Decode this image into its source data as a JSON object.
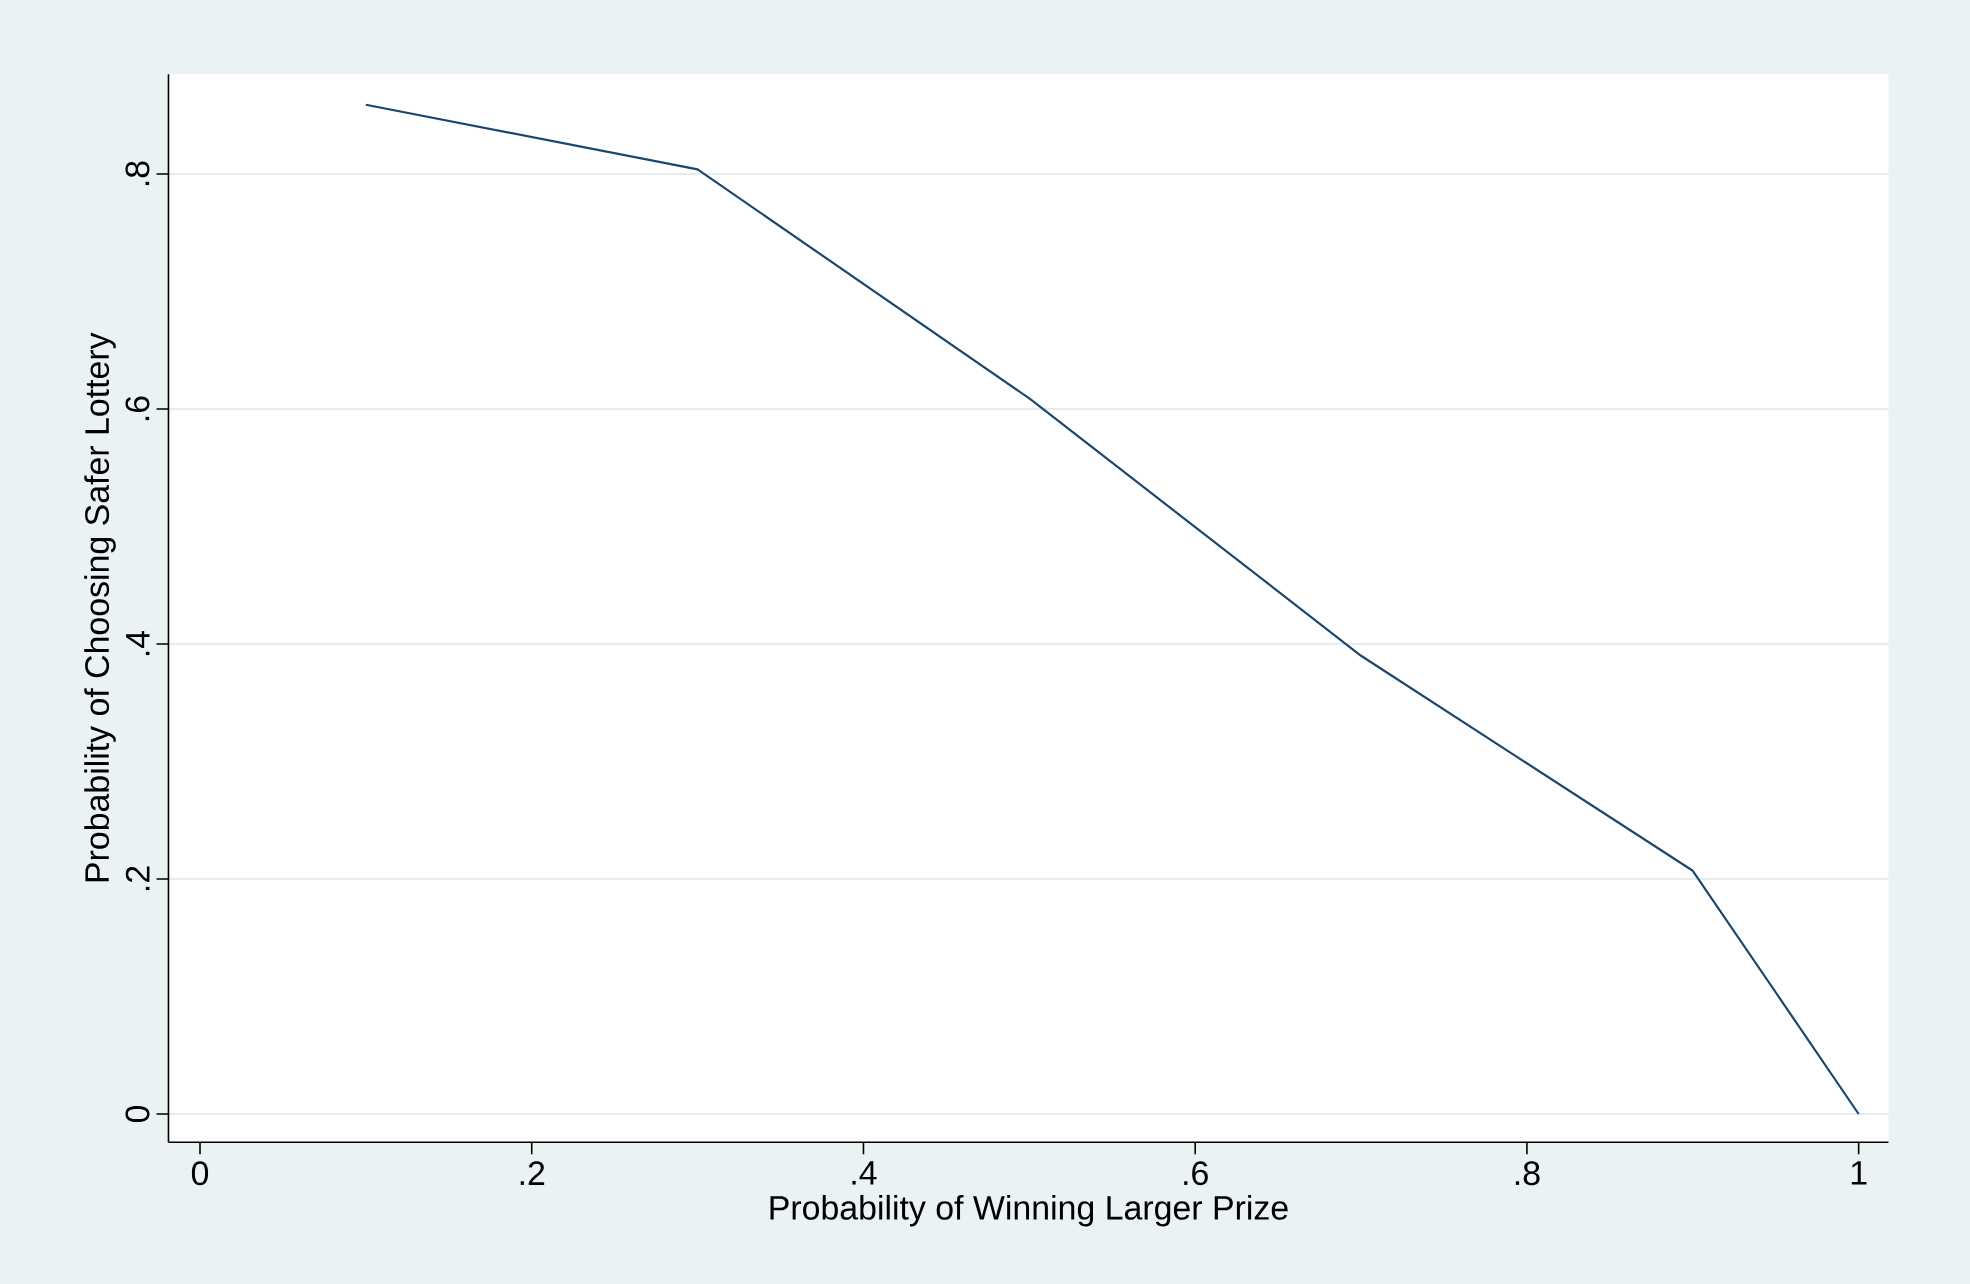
{
  "chart_data": {
    "type": "line",
    "xlabel": "Probability of Winning Larger Prize",
    "ylabel": "Probability of Choosing Safer Lottery",
    "x": [
      0.1,
      0.3,
      0.5,
      0.7,
      0.9,
      1.0
    ],
    "series": [
      {
        "color": "#1a476f",
        "values": [
          0.859,
          0.804,
          0.609,
          0.39,
          0.207,
          0
        ]
      }
    ],
    "xlim": [
      -0.019,
      1.018
    ],
    "ylim": [
      -0.024,
      0.885
    ],
    "xticks": [
      0,
      {
        "value": 0.2,
        "label": ".2"
      },
      {
        "value": 0.4,
        "label": ".4"
      },
      {
        "value": 0.6,
        "label": ".6"
      },
      {
        "value": 0.8,
        "label": ".8"
      },
      1
    ],
    "yticks": [
      0,
      {
        "value": 0.2,
        "label": ".2"
      },
      {
        "value": 0.4,
        "label": ".4"
      },
      {
        "value": 0.6,
        "label": ".6"
      },
      {
        "value": 0.8,
        "label": ".8"
      }
    ],
    "grid": "y",
    "line_style": "solid"
  }
}
